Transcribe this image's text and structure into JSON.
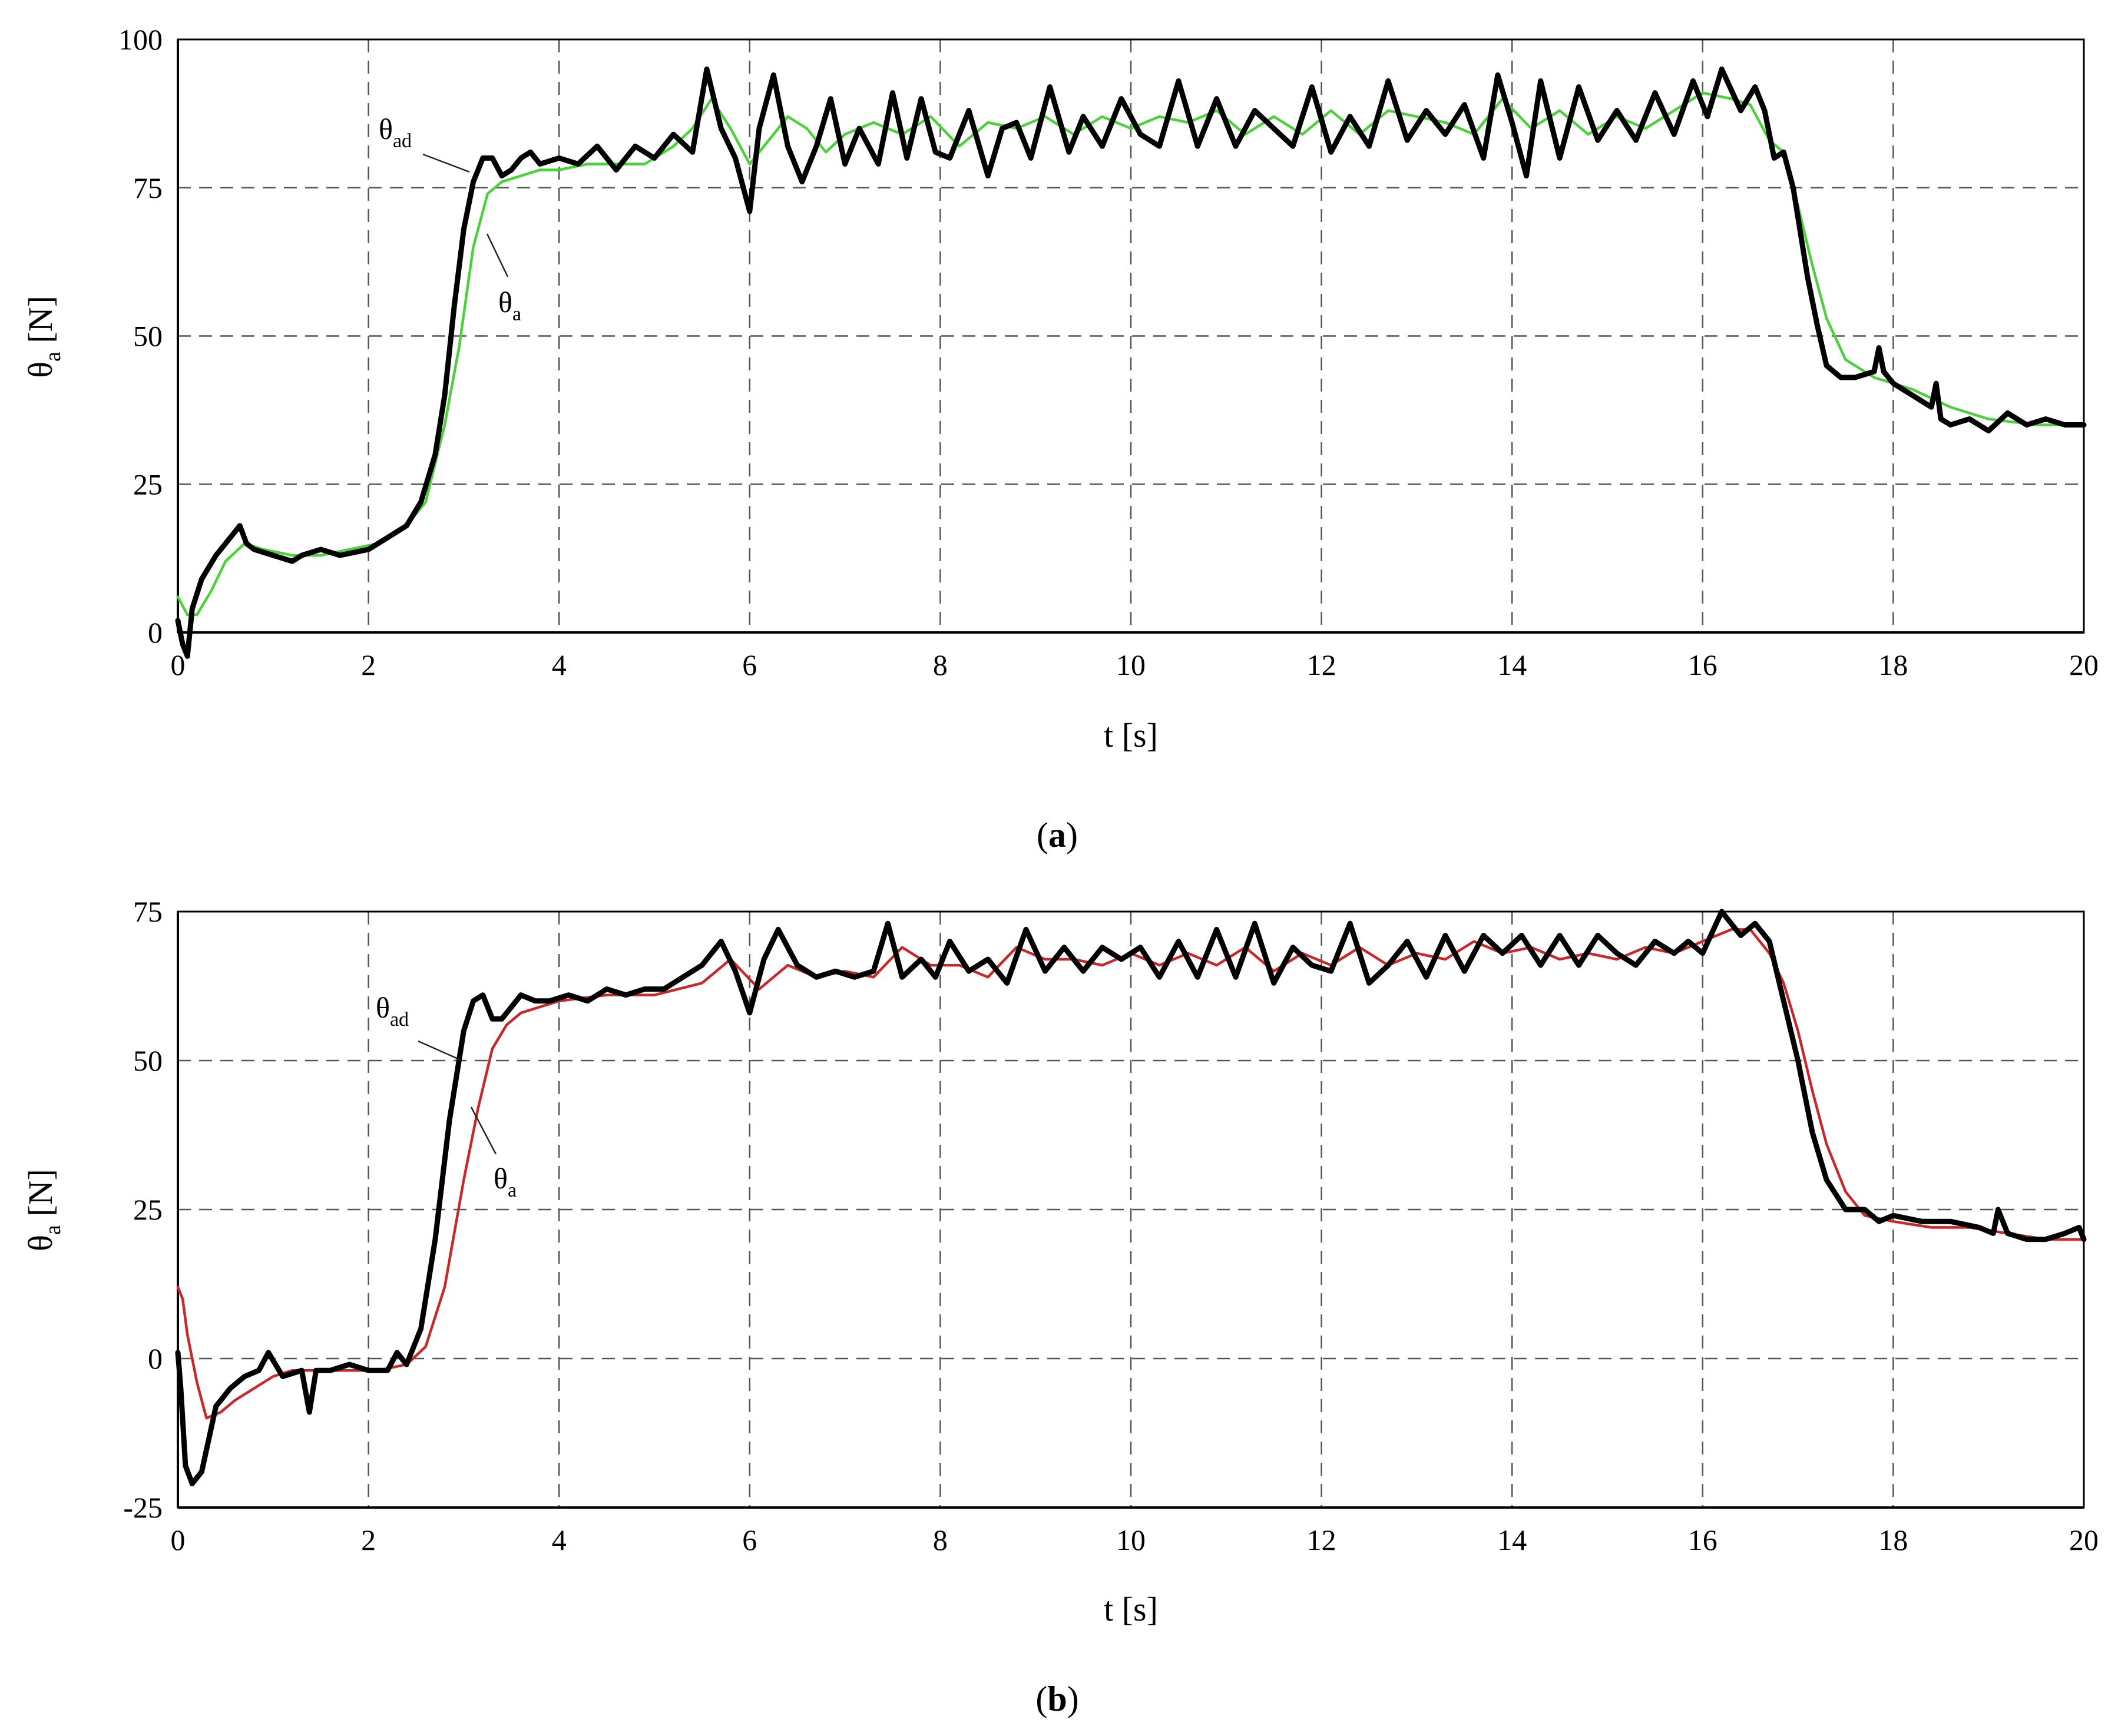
{
  "chart_data": [
    {
      "type": "line",
      "panel_caption": {
        "open": "(",
        "letter": "a",
        "close": ")"
      },
      "xlabel": "t [s]",
      "ylabel": {
        "base": "θ",
        "sub": "a",
        "unit": " [N]"
      },
      "xlim": [
        0,
        20
      ],
      "ylim": [
        0,
        100
      ],
      "x_ticks": [
        0,
        2,
        4,
        6,
        8,
        10,
        12,
        14,
        16,
        18,
        20
      ],
      "y_ticks": [
        0,
        25,
        50,
        75,
        100
      ],
      "grid": true,
      "annotations": [
        {
          "base": "θ",
          "sub": "ad",
          "series": 0
        },
        {
          "base": "θ",
          "sub": "a",
          "series": 1
        }
      ],
      "series": [
        {
          "name": "θad",
          "color": "#000000",
          "x": [
            0,
            0.05,
            0.1,
            0.15,
            0.25,
            0.4,
            0.55,
            0.65,
            0.72,
            0.8,
            1.0,
            1.2,
            1.3,
            1.5,
            1.7,
            2.0,
            2.2,
            2.4,
            2.55,
            2.7,
            2.8,
            2.9,
            3.0,
            3.1,
            3.2,
            3.3,
            3.4,
            3.5,
            3.6,
            3.7,
            3.8,
            4.0,
            4.2,
            4.4,
            4.6,
            4.8,
            5.0,
            5.2,
            5.4,
            5.55,
            5.7,
            5.85,
            6.0,
            6.1,
            6.25,
            6.4,
            6.55,
            6.7,
            6.85,
            7.0,
            7.15,
            7.35,
            7.5,
            7.65,
            7.8,
            7.95,
            8.1,
            8.3,
            8.5,
            8.65,
            8.8,
            8.95,
            9.15,
            9.35,
            9.5,
            9.7,
            9.9,
            10.1,
            10.3,
            10.5,
            10.7,
            10.9,
            11.1,
            11.3,
            11.5,
            11.7,
            11.9,
            12.1,
            12.3,
            12.5,
            12.7,
            12.9,
            13.1,
            13.3,
            13.5,
            13.7,
            13.85,
            14.0,
            14.15,
            14.3,
            14.5,
            14.7,
            14.9,
            15.1,
            15.3,
            15.5,
            15.7,
            15.9,
            16.05,
            16.2,
            16.4,
            16.55,
            16.65,
            16.75,
            16.85,
            16.95,
            17.1,
            17.2,
            17.3,
            17.45,
            17.6,
            17.8,
            17.85,
            17.9,
            18.0,
            18.2,
            18.4,
            18.45,
            18.5,
            18.6,
            18.8,
            19.0,
            19.2,
            19.4,
            19.6,
            19.8,
            20.0
          ],
          "y": [
            2,
            -2,
            -4,
            4,
            9,
            13,
            16,
            18,
            15,
            14,
            13,
            12,
            13,
            14,
            13,
            14,
            16,
            18,
            22,
            30,
            40,
            55,
            68,
            76,
            80,
            80,
            77,
            78,
            80,
            81,
            79,
            80,
            79,
            82,
            78,
            82,
            80,
            84,
            81,
            95,
            85,
            80,
            71,
            85,
            94,
            82,
            76,
            82,
            90,
            79,
            85,
            79,
            91,
            80,
            90,
            81,
            80,
            88,
            77,
            85,
            86,
            80,
            92,
            81,
            87,
            82,
            90,
            84,
            82,
            93,
            82,
            90,
            82,
            88,
            85,
            82,
            92,
            81,
            87,
            82,
            93,
            83,
            88,
            84,
            89,
            80,
            94,
            86,
            77,
            93,
            80,
            92,
            83,
            88,
            83,
            91,
            84,
            93,
            87,
            95,
            88,
            92,
            88,
            80,
            81,
            75,
            60,
            52,
            45,
            43,
            43,
            44,
            48,
            44,
            42,
            40,
            38,
            42,
            36,
            35,
            36,
            34,
            37,
            35,
            36,
            35,
            35
          ]
        },
        {
          "name": "θa",
          "color": "#4cd13c",
          "x": [
            0,
            0.1,
            0.2,
            0.35,
            0.5,
            0.7,
            0.9,
            1.2,
            1.5,
            1.8,
            2.1,
            2.4,
            2.6,
            2.8,
            2.95,
            3.1,
            3.25,
            3.4,
            3.6,
            3.8,
            4.0,
            4.3,
            4.6,
            4.9,
            5.2,
            5.4,
            5.6,
            5.8,
            6.0,
            6.2,
            6.4,
            6.6,
            6.8,
            7.0,
            7.3,
            7.6,
            7.9,
            8.2,
            8.5,
            8.8,
            9.1,
            9.4,
            9.7,
            10.0,
            10.3,
            10.6,
            10.9,
            11.2,
            11.5,
            11.8,
            12.1,
            12.4,
            12.7,
            13.0,
            13.3,
            13.6,
            13.9,
            14.2,
            14.5,
            14.8,
            15.1,
            15.4,
            15.7,
            16.0,
            16.3,
            16.5,
            16.7,
            16.85,
            17.0,
            17.15,
            17.3,
            17.5,
            17.8,
            18.2,
            18.6,
            19.0,
            19.5,
            20.0
          ],
          "y": [
            6,
            3,
            3,
            7,
            12,
            15,
            14,
            13,
            13,
            14,
            15,
            18,
            22,
            35,
            48,
            65,
            74,
            76,
            77,
            78,
            78,
            79,
            79,
            79,
            82,
            85,
            90,
            85,
            79,
            83,
            87,
            85,
            81,
            84,
            86,
            84,
            87,
            82,
            86,
            85,
            87,
            84,
            87,
            85,
            87,
            86,
            88,
            84,
            87,
            84,
            88,
            84,
            88,
            87,
            86,
            84,
            90,
            85,
            88,
            84,
            87,
            85,
            88,
            91,
            90,
            89,
            83,
            81,
            72,
            62,
            53,
            46,
            43,
            41,
            38,
            36,
            35,
            35
          ]
        }
      ]
    },
    {
      "type": "line",
      "panel_caption": {
        "open": "(",
        "letter": "b",
        "close": ")"
      },
      "xlabel": "t [s]",
      "ylabel": {
        "base": "θ",
        "sub": "a",
        "unit": " [N]"
      },
      "xlim": [
        0,
        20
      ],
      "ylim": [
        -25,
        75
      ],
      "x_ticks": [
        0,
        2,
        4,
        6,
        8,
        10,
        12,
        14,
        16,
        18,
        20
      ],
      "y_ticks": [
        -25,
        0,
        25,
        50,
        75
      ],
      "grid": true,
      "annotations": [
        {
          "base": "θ",
          "sub": "ad",
          "series": 0
        },
        {
          "base": "θ",
          "sub": "a",
          "series": 1
        }
      ],
      "series": [
        {
          "name": "θad",
          "color": "#000000",
          "x": [
            0,
            0.03,
            0.08,
            0.15,
            0.25,
            0.4,
            0.55,
            0.7,
            0.85,
            0.95,
            1.1,
            1.3,
            1.38,
            1.45,
            1.6,
            1.8,
            2.0,
            2.2,
            2.3,
            2.4,
            2.55,
            2.7,
            2.85,
            3.0,
            3.1,
            3.2,
            3.3,
            3.4,
            3.5,
            3.6,
            3.75,
            3.9,
            4.1,
            4.3,
            4.5,
            4.7,
            4.9,
            5.1,
            5.3,
            5.5,
            5.7,
            5.85,
            6.0,
            6.15,
            6.3,
            6.5,
            6.7,
            6.9,
            7.1,
            7.3,
            7.45,
            7.6,
            7.8,
            7.95,
            8.1,
            8.3,
            8.5,
            8.7,
            8.9,
            9.1,
            9.3,
            9.5,
            9.7,
            9.9,
            10.1,
            10.3,
            10.5,
            10.7,
            10.9,
            11.1,
            11.3,
            11.5,
            11.7,
            11.9,
            12.1,
            12.3,
            12.5,
            12.7,
            12.9,
            13.1,
            13.3,
            13.5,
            13.7,
            13.9,
            14.1,
            14.3,
            14.5,
            14.7,
            14.9,
            15.1,
            15.3,
            15.5,
            15.7,
            15.85,
            16.0,
            16.2,
            16.4,
            16.55,
            16.7,
            16.85,
            17.0,
            17.15,
            17.3,
            17.5,
            17.7,
            17.85,
            18.0,
            18.3,
            18.6,
            18.9,
            19.05,
            19.1,
            19.2,
            19.4,
            19.6,
            19.8,
            19.95,
            20.0
          ],
          "y": [
            1,
            -5,
            -18,
            -21,
            -19,
            -8,
            -5,
            -3,
            -2,
            1,
            -3,
            -2,
            -9,
            -2,
            -2,
            -1,
            -2,
            -2,
            1,
            -1,
            5,
            20,
            40,
            55,
            60,
            61,
            57,
            57,
            59,
            61,
            60,
            60,
            61,
            60,
            62,
            61,
            62,
            62,
            64,
            66,
            70,
            65,
            58,
            67,
            72,
            66,
            64,
            65,
            64,
            65,
            73,
            64,
            67,
            64,
            70,
            65,
            67,
            63,
            72,
            65,
            69,
            65,
            69,
            67,
            69,
            64,
            70,
            64,
            72,
            64,
            73,
            63,
            69,
            66,
            65,
            73,
            63,
            66,
            70,
            64,
            71,
            65,
            71,
            68,
            71,
            66,
            71,
            66,
            71,
            68,
            66,
            70,
            68,
            70,
            68,
            75,
            71,
            73,
            70,
            60,
            50,
            38,
            30,
            25,
            25,
            23,
            24,
            23,
            23,
            22,
            21,
            25,
            21,
            20,
            20,
            21,
            22,
            20
          ]
        },
        {
          "name": "θa",
          "color": "#c8282a",
          "x": [
            0,
            0.05,
            0.1,
            0.2,
            0.3,
            0.45,
            0.6,
            0.8,
            1.0,
            1.2,
            1.5,
            1.8,
            2.1,
            2.4,
            2.6,
            2.8,
            3.0,
            3.15,
            3.3,
            3.45,
            3.6,
            3.8,
            4.0,
            4.5,
            5.0,
            5.5,
            5.8,
            6.1,
            6.4,
            6.7,
            7.0,
            7.3,
            7.6,
            7.9,
            8.2,
            8.5,
            8.8,
            9.1,
            9.4,
            9.7,
            10.0,
            10.3,
            10.6,
            10.9,
            11.2,
            11.5,
            11.8,
            12.1,
            12.4,
            12.7,
            13.0,
            13.3,
            13.6,
            13.9,
            14.2,
            14.5,
            14.8,
            15.1,
            15.4,
            15.7,
            16.0,
            16.3,
            16.5,
            16.7,
            16.85,
            17.0,
            17.15,
            17.3,
            17.5,
            17.7,
            18.0,
            18.4,
            18.8,
            19.2,
            19.6,
            20.0
          ],
          "y": [
            12,
            10,
            4,
            -4,
            -10,
            -9,
            -7,
            -5,
            -3,
            -2,
            -2,
            -2,
            -2,
            -1,
            2,
            12,
            30,
            42,
            52,
            56,
            58,
            59,
            60,
            61,
            61,
            63,
            67,
            62,
            66,
            64,
            65,
            64,
            69,
            66,
            66,
            64,
            69,
            67,
            67,
            66,
            68,
            66,
            68,
            66,
            69,
            65,
            68,
            66,
            69,
            66,
            68,
            67,
            70,
            68,
            69,
            67,
            68,
            67,
            69,
            68,
            70,
            72,
            72,
            68,
            63,
            55,
            45,
            36,
            28,
            24,
            23,
            22,
            22,
            21,
            20,
            20
          ]
        }
      ]
    }
  ]
}
